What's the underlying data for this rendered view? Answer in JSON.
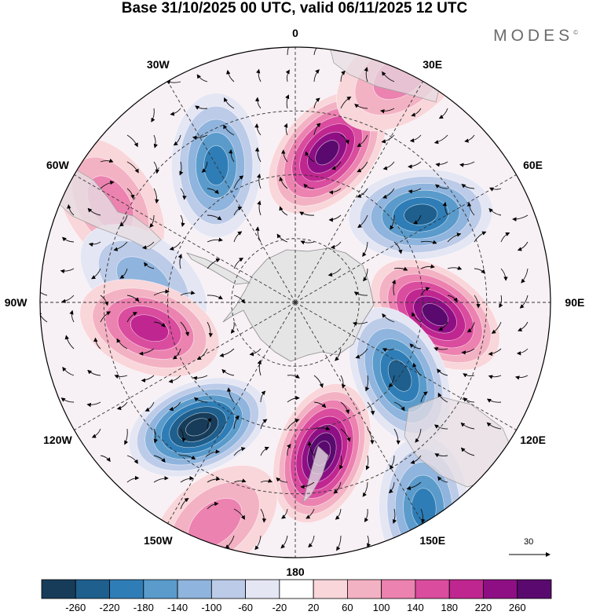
{
  "title": "Base 31/10/2025 00 UTC, valid 06/11/2025 12 UTC",
  "brand": "MODES",
  "brand_mark": "©",
  "lon_labels": [
    "0",
    "30E",
    "60E",
    "90E",
    "120E",
    "150E",
    "180",
    "150W",
    "120W",
    "90W",
    "60W",
    "30W"
  ],
  "reference_vector": "30",
  "legend": {
    "ticks": [
      "-260",
      "-220",
      "-180",
      "-140",
      "-100",
      "-60",
      "-20",
      "20",
      "60",
      "100",
      "140",
      "180",
      "220",
      "260"
    ],
    "colors": [
      "#173c5a",
      "#1e5f8e",
      "#2f7db6",
      "#5a9bcb",
      "#8fb4dd",
      "#bccbe8",
      "#e4e6f4",
      "#ffffff",
      "#f9d6da",
      "#f3b2c4",
      "#ec82b0",
      "#d94c9e",
      "#c02690",
      "#8e0f84",
      "#5a0a6e"
    ]
  },
  "anomalies": [
    {
      "lon": 12,
      "r": 0.6,
      "value": 240
    },
    {
      "lon": -30,
      "r": 0.62,
      "value": -170
    },
    {
      "lon": 55,
      "r": 0.6,
      "value": -180
    },
    {
      "lon": -62,
      "r": 0.82,
      "value": 60
    },
    {
      "lon": -82,
      "r": 0.6,
      "value": -60
    },
    {
      "lon": 95,
      "r": 0.55,
      "value": 250
    },
    {
      "lon": -100,
      "r": 0.58,
      "value": 140
    },
    {
      "lon": 125,
      "r": 0.5,
      "value": -200
    },
    {
      "lon": -142,
      "r": 0.62,
      "value": -260
    },
    {
      "lon": 170,
      "r": 0.6,
      "value": 260
    },
    {
      "lon": 148,
      "r": 0.95,
      "value": -140
    },
    {
      "lon": 25,
      "r": 0.98,
      "value": 60
    },
    {
      "lon": -160,
      "r": 0.92,
      "value": 60
    }
  ]
}
